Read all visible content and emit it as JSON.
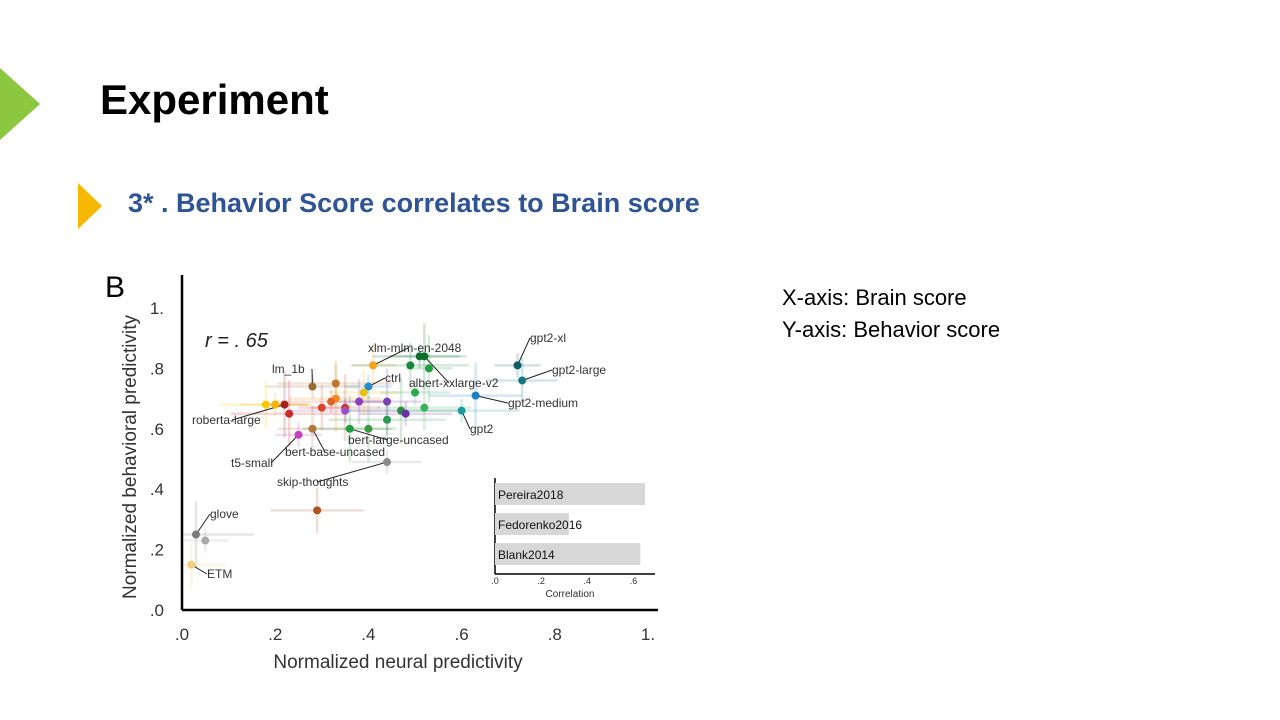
{
  "slide": {
    "title": "Experiment",
    "subtitle": "3* . Behavior Score correlates to Brain score",
    "notes": [
      "X-axis: Brain score",
      "Y-axis: Behavior score"
    ],
    "colors": {
      "accent": "#8dc63f",
      "bullet": "#f6b800",
      "subtitle": "#2f5496"
    }
  },
  "chart_data": [
    {
      "type": "scatter",
      "panel_label": "B",
      "xlabel": "Normalized neural predictivity",
      "ylabel": "Normalized behavioral predictivity",
      "xlim": [
        0,
        1
      ],
      "ylim": [
        0,
        1
      ],
      "xticks": [
        ".0",
        ".2",
        ".4",
        ".6",
        ".8",
        "1."
      ],
      "yticks": [
        ".0",
        ".2",
        ".4",
        ".6",
        ".8",
        "1."
      ],
      "annotation": "r = . 65",
      "points": [
        {
          "x": 0.72,
          "y": 0.81,
          "color": "#0e5d63",
          "label": "gpt2-xl"
        },
        {
          "x": 0.73,
          "y": 0.76,
          "color": "#127a80",
          "label": "gpt2-large"
        },
        {
          "x": 0.63,
          "y": 0.71,
          "color": "#1b7fc1",
          "label": "gpt2-medium"
        },
        {
          "x": 0.6,
          "y": 0.66,
          "color": "#1e9a9a",
          "label": "gpt2"
        },
        {
          "x": 0.41,
          "y": 0.81,
          "color": "#f5a31a",
          "label": "xlm-mlm-en-2048"
        },
        {
          "x": 0.52,
          "y": 0.84,
          "color": "#0a6e2c",
          "label": "albert-xxlarge-v2"
        },
        {
          "x": 0.51,
          "y": 0.84,
          "color": "#0a6e2c",
          "label": ""
        },
        {
          "x": 0.49,
          "y": 0.81,
          "color": "#138a3a",
          "label": ""
        },
        {
          "x": 0.53,
          "y": 0.8,
          "color": "#1f9e46",
          "label": ""
        },
        {
          "x": 0.5,
          "y": 0.72,
          "color": "#2aa84e",
          "label": ""
        },
        {
          "x": 0.52,
          "y": 0.67,
          "color": "#33b35a",
          "label": ""
        },
        {
          "x": 0.47,
          "y": 0.66,
          "color": "#2c8a3c",
          "label": ""
        },
        {
          "x": 0.4,
          "y": 0.74,
          "color": "#1f8fd0",
          "label": "ctrl"
        },
        {
          "x": 0.39,
          "y": 0.72,
          "color": "#e5c018",
          "label": ""
        },
        {
          "x": 0.33,
          "y": 0.7,
          "color": "#f48b1a",
          "label": ""
        },
        {
          "x": 0.32,
          "y": 0.69,
          "color": "#e2632b",
          "label": ""
        },
        {
          "x": 0.3,
          "y": 0.67,
          "color": "#d9442a",
          "label": ""
        },
        {
          "x": 0.35,
          "y": 0.67,
          "color": "#c9372b",
          "label": ""
        },
        {
          "x": 0.28,
          "y": 0.74,
          "color": "#9b6a2f",
          "label": "lm_1b"
        },
        {
          "x": 0.33,
          "y": 0.75,
          "color": "#c0782a",
          "label": ""
        },
        {
          "x": 0.22,
          "y": 0.68,
          "color": "#a81f1f",
          "label": "roberta-large"
        },
        {
          "x": 0.2,
          "y": 0.68,
          "color": "#f0b400",
          "label": ""
        },
        {
          "x": 0.18,
          "y": 0.68,
          "color": "#f6c800",
          "label": ""
        },
        {
          "x": 0.23,
          "y": 0.65,
          "color": "#c92a2a",
          "label": ""
        },
        {
          "x": 0.25,
          "y": 0.58,
          "color": "#c43fc4",
          "label": "t5-small"
        },
        {
          "x": 0.28,
          "y": 0.6,
          "color": "#b5763a",
          "label": "bert-base-uncased"
        },
        {
          "x": 0.36,
          "y": 0.6,
          "color": "#1e9a40",
          "label": "bert-large-uncased"
        },
        {
          "x": 0.35,
          "y": 0.66,
          "color": "#9a4fc2",
          "label": ""
        },
        {
          "x": 0.38,
          "y": 0.69,
          "color": "#8b3fbf",
          "label": ""
        },
        {
          "x": 0.44,
          "y": 0.69,
          "color": "#7a3fb5",
          "label": ""
        },
        {
          "x": 0.48,
          "y": 0.65,
          "color": "#6a2fa8",
          "label": ""
        },
        {
          "x": 0.44,
          "y": 0.63,
          "color": "#2a9a50",
          "label": ""
        },
        {
          "x": 0.4,
          "y": 0.6,
          "color": "#3a9a40",
          "label": ""
        },
        {
          "x": 0.44,
          "y": 0.49,
          "color": "#8a8a8a",
          "label": "skip-thoughts"
        },
        {
          "x": 0.29,
          "y": 0.33,
          "color": "#b0521c",
          "label": ""
        },
        {
          "x": 0.03,
          "y": 0.25,
          "color": "#7a7a7a",
          "label": "glove"
        },
        {
          "x": 0.05,
          "y": 0.23,
          "color": "#a8a8a8",
          "label": ""
        },
        {
          "x": 0.02,
          "y": 0.15,
          "color": "#f0d080",
          "label": "ETM"
        }
      ],
      "inset": {
        "type": "bar",
        "orientation": "horizontal",
        "xlabel": "Correlation",
        "xticks": [
          ".0",
          ".2",
          ".4",
          ".6"
        ],
        "xlim": [
          0,
          0.65
        ],
        "categories": [
          "Pereira2018",
          "Fedorenko2016",
          "Blank2014"
        ],
        "values": [
          0.65,
          0.32,
          0.63
        ],
        "bar_color": "#d7d7d7"
      }
    }
  ]
}
